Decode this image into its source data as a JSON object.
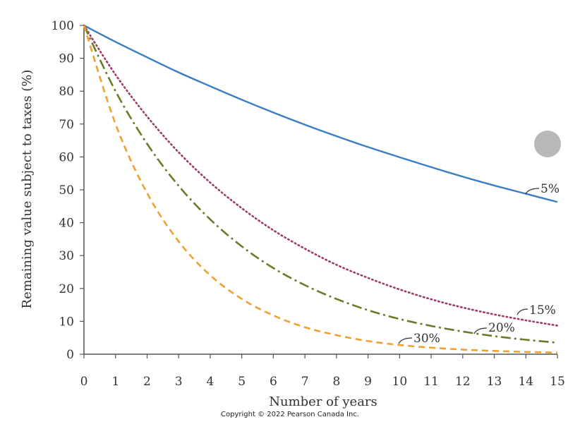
{
  "chart_data": {
    "type": "line",
    "xlabel": "Number of years",
    "ylabel": "Remaining value subject to taxes (%)",
    "xlim": [
      0,
      15
    ],
    "ylim": [
      0,
      100
    ],
    "xticks": [
      0,
      1,
      2,
      3,
      4,
      5,
      6,
      7,
      8,
      9,
      10,
      11,
      12,
      13,
      14,
      15
    ],
    "yticks": [
      0,
      10,
      20,
      30,
      40,
      50,
      60,
      70,
      80,
      90,
      100
    ],
    "grid": false,
    "x": [
      0,
      1,
      2,
      3,
      4,
      5,
      6,
      7,
      8,
      9,
      10,
      11,
      12,
      13,
      14,
      15
    ],
    "series": [
      {
        "name": "5%",
        "color": "#3b7cc4",
        "style": "solid",
        "values": [
          100,
          95,
          90.3,
          85.7,
          81.5,
          77.4,
          73.5,
          69.8,
          66.3,
          63.0,
          59.9,
          56.9,
          54.0,
          51.3,
          48.8,
          46.3
        ]
      },
      {
        "name": "15%",
        "color": "#9b3a6b",
        "style": "dotted",
        "values": [
          100,
          85,
          72.3,
          61.4,
          52.2,
          44.4,
          37.7,
          32.1,
          27.2,
          23.2,
          19.7,
          16.7,
          14.2,
          12.1,
          10.3,
          8.7
        ]
      },
      {
        "name": "20%",
        "color": "#6b7a2a",
        "style": "dashdot",
        "values": [
          100,
          80,
          64,
          51.2,
          41.0,
          32.8,
          26.2,
          21.0,
          16.8,
          13.4,
          10.7,
          8.6,
          6.9,
          5.5,
          4.4,
          3.5
        ]
      },
      {
        "name": "30%",
        "color": "#f0a030",
        "style": "dashed",
        "values": [
          100,
          70,
          49,
          34.3,
          24.0,
          16.8,
          11.8,
          8.2,
          5.8,
          4.0,
          2.8,
          2.0,
          1.4,
          1.0,
          0.7,
          0.5
        ]
      }
    ]
  },
  "footer": {
    "copyright": "Copyright © 2022 Pearson Canada Inc."
  }
}
